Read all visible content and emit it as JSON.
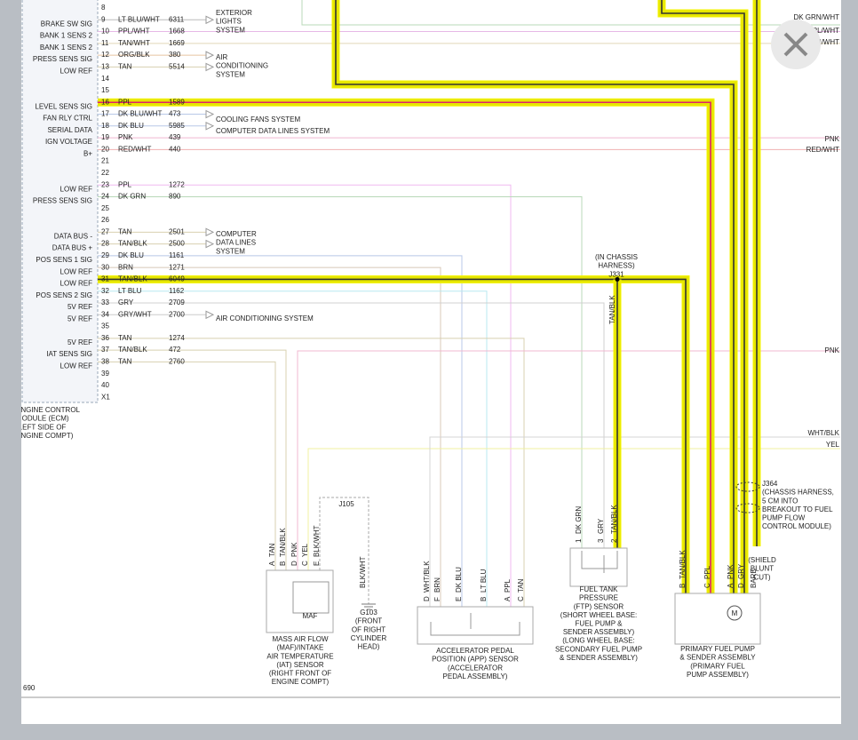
{
  "ecm": {
    "label": [
      "ENGINE CONTROL",
      "MODULE (ECM)",
      "(LEFT SIDE OF",
      "ENGINE COMPT)"
    ],
    "pins": [
      {
        "pin": "8"
      },
      {
        "pin": "9",
        "signal": "BRAKE SW SIG",
        "color": "LT BLU/WHT",
        "circuit": "6311"
      },
      {
        "pin": "10",
        "signal": "BANK 1 SENS 2",
        "color": "PPL/WHT",
        "circuit": "1668"
      },
      {
        "pin": "11",
        "signal": "BANK 1 SENS 2",
        "color": "TAN/WHT",
        "circuit": "1669"
      },
      {
        "pin": "12",
        "signal": "PRESS SENS SIG",
        "color": "ORG/BLK",
        "circuit": "380"
      },
      {
        "pin": "13",
        "signal": "LOW REF",
        "color": "TAN",
        "circuit": "5514"
      },
      {
        "pin": "14"
      },
      {
        "pin": "15"
      },
      {
        "pin": "16",
        "signal": "LEVEL SENS SIG",
        "color": "PPL",
        "circuit": "1589"
      },
      {
        "pin": "17",
        "signal": "FAN RLY CTRL",
        "color": "DK BLU/WHT",
        "circuit": "473"
      },
      {
        "pin": "18",
        "signal": "SERIAL DATA",
        "color": "DK BLU",
        "circuit": "5985"
      },
      {
        "pin": "19",
        "signal": "IGN VOLTAGE",
        "color": "PNK",
        "circuit": "439"
      },
      {
        "pin": "20",
        "signal": "B+",
        "color": "RED/WHT",
        "circuit": "440"
      },
      {
        "pin": "21"
      },
      {
        "pin": "22"
      },
      {
        "pin": "23",
        "signal": "LOW REF",
        "color": "PPL",
        "circuit": "1272"
      },
      {
        "pin": "24",
        "signal": "PRESS SENS SIG",
        "color": "DK GRN",
        "circuit": "890"
      },
      {
        "pin": "25"
      },
      {
        "pin": "26"
      },
      {
        "pin": "27",
        "signal": "DATA BUS -",
        "color": "TAN",
        "circuit": "2501"
      },
      {
        "pin": "28",
        "signal": "DATA BUS +",
        "color": "TAN/BLK",
        "circuit": "2500"
      },
      {
        "pin": "29",
        "signal": "POS SENS 1 SIG",
        "color": "DK BLU",
        "circuit": "1161"
      },
      {
        "pin": "30",
        "signal": "LOW REF",
        "color": "BRN",
        "circuit": "1271"
      },
      {
        "pin": "31",
        "signal": "LOW REF",
        "color": "TAN/BLK",
        "circuit": "6049"
      },
      {
        "pin": "32",
        "signal": "POS SENS 2 SIG",
        "color": "LT BLU",
        "circuit": "1162"
      },
      {
        "pin": "33",
        "signal": "5V REF",
        "color": "GRY",
        "circuit": "2709"
      },
      {
        "pin": "34",
        "signal": "5V REF",
        "color": "GRY/WHT",
        "circuit": "2700"
      },
      {
        "pin": "35"
      },
      {
        "pin": "36",
        "signal": "5V REF",
        "color": "TAN",
        "circuit": "1274"
      },
      {
        "pin": "37",
        "signal": "IAT SENS SIG",
        "color": "TAN/BLK",
        "circuit": "472"
      },
      {
        "pin": "38",
        "signal": "LOW REF",
        "color": "TAN",
        "circuit": "2760"
      },
      {
        "pin": "39"
      },
      {
        "pin": "40"
      },
      {
        "pin": "X1"
      }
    ]
  },
  "destinations": [
    {
      "lines": [
        "EXTERIOR",
        "LIGHTS",
        "SYSTEM"
      ]
    },
    {
      "lines": [
        "AIR",
        "CONDITIONING",
        "SYSTEM"
      ]
    },
    {
      "lines": [
        "COOLING FANS SYSTEM"
      ]
    },
    {
      "lines": [
        "COMPUTER DATA LINES SYSTEM"
      ]
    },
    {
      "lines": [
        "COMPUTER",
        "DATA LINES",
        "SYSTEM"
      ]
    },
    {
      "lines": [
        "AIR CONDITIONING SYSTEM"
      ]
    }
  ],
  "edge_labels": [
    "DK GRN/WHT",
    "PPL/WHT",
    "TAN/WHT",
    "PNK",
    "RED/WHT",
    "PNK",
    "WHT/BLK",
    "YEL"
  ],
  "junctions": [
    {
      "lines": [
        "(IN CHASSIS",
        "HARNESS)",
        "J331"
      ],
      "wire_label": "TAN/BLK"
    },
    {
      "lines": [
        "J105"
      ]
    },
    {
      "lines": [
        "J364",
        "(CHASSIS HARNESS,",
        "5 CM INTO",
        "BREAKOUT TO FUEL",
        "PUMP FLOW",
        "CONTROL MODULE)"
      ]
    },
    {
      "lines": [
        "(SHIELD",
        "BLUNT",
        "CUT)"
      ]
    }
  ],
  "components": [
    {
      "name": "MAF",
      "pins": [
        {
          "pin": "A",
          "wire": "TAN"
        },
        {
          "pin": "B",
          "wire": "TAN/BLK"
        },
        {
          "pin": "D",
          "wire": "PNK"
        },
        {
          "pin": "C",
          "wire": "YEL"
        },
        {
          "pin": "E",
          "wire": "BLK/WHT"
        }
      ],
      "caption": [
        "MASS AIR FLOW",
        "(MAF)/INTAKE",
        "AIR TEMPERATURE",
        "(IAT) SENSOR",
        "(RIGHT FRONT OF",
        "ENGINE COMPT)"
      ]
    },
    {
      "pins": [
        {
          "wire": "BLK/WHT"
        }
      ],
      "caption": [
        "G103",
        "(FRONT",
        "OF RIGHT",
        "CYLINDER",
        "HEAD)"
      ]
    },
    {
      "pins": [
        {
          "pin": "D",
          "wire": "WHT/BLK"
        },
        {
          "pin": "F",
          "wire": "BRN"
        },
        {
          "pin": "E",
          "wire": "DK BLU"
        },
        {
          "pin": "B",
          "wire": "LT BLU"
        },
        {
          "pin": "A",
          "wire": "PPL"
        },
        {
          "pin": "C",
          "wire": "TAN"
        }
      ],
      "caption": [
        "ACCELERATOR PEDAL",
        "POSITION (APP) SENSOR",
        "(ACCELERATOR",
        "PEDAL ASSEMBLY)"
      ]
    },
    {
      "pins": [
        {
          "pin": "1",
          "wire": "DK GRN"
        },
        {
          "pin": "3",
          "wire": "GRY"
        },
        {
          "pin": "2",
          "wire": "TAN/BLK"
        }
      ],
      "caption": [
        "FUEL TANK",
        "PRESSURE",
        "(FTP) SENSOR",
        "(SHORT WHEEL BASE:",
        "FUEL PUMP &",
        "SENDER ASSEMBLY)",
        "(LONG WHEEL BASE:",
        "SECONDARY FUEL PUMP",
        "& SENDER ASSEMBLY)"
      ]
    },
    {
      "motor": "M",
      "pins": [
        {
          "pin": "B",
          "wire": "TAN/BLK"
        },
        {
          "pin": "C",
          "wire": "PPL"
        },
        {
          "pin": "A",
          "wire": "PNK"
        },
        {
          "pin": "D",
          "wire": "GRY"
        },
        {
          "wire": "BARE"
        }
      ],
      "caption": [
        "PRIMARY FUEL PUMP",
        "& SENDER ASSEMBLY",
        "(PRIMARY FUEL",
        "PUMP ASSEMBLY)"
      ]
    }
  ],
  "page_number": "690"
}
